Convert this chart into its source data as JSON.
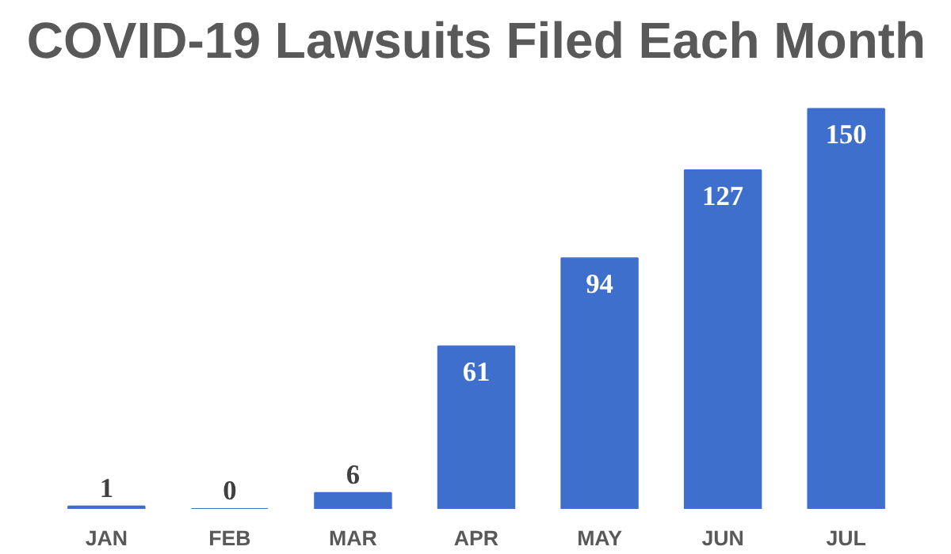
{
  "chart_data": {
    "type": "bar",
    "title": "COVID-19 Lawsuits Filed Each Month",
    "categories": [
      "JAN",
      "FEB",
      "MAR",
      "APR",
      "MAY",
      "JUN",
      "JUL"
    ],
    "values": [
      1,
      0,
      6,
      61,
      94,
      127,
      150
    ],
    "color": "#3f6fcc",
    "data_labels": true,
    "grid": false
  }
}
